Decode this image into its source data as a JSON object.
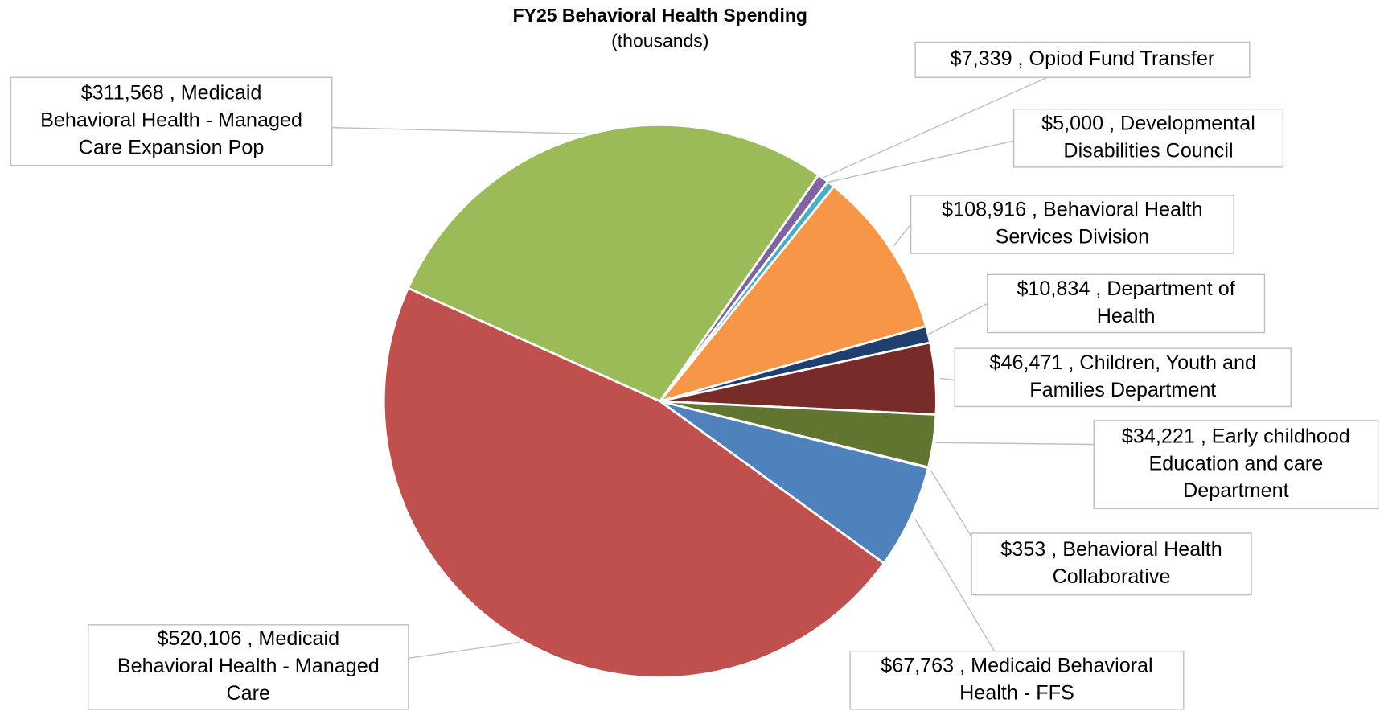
{
  "chart_data": {
    "type": "pie",
    "title": "FY25 Behavioral Health Spending",
    "subtitle": "(thousands)",
    "values": [
      7339,
      5000,
      108916,
      10834,
      46471,
      34221,
      353,
      67763,
      520106,
      311568
    ],
    "value_labels": [
      [
        "$7,339 , Opiod Fund Transfer"
      ],
      [
        "$5,000 , Developmental",
        "Disabilities Council"
      ],
      [
        "$108,916 , Behavioral Health",
        "Services Division"
      ],
      [
        "$10,834 , Department of",
        "Health"
      ],
      [
        "$46,471 , Children, Youth and",
        "Families Department"
      ],
      [
        "$34,221 , Early childhood",
        "Education and care",
        "Department"
      ],
      [
        "$353 , Behavioral Health",
        "Collaborative"
      ],
      [
        "$67,763 , Medicaid Behavioral",
        "Health - FFS"
      ],
      [
        "$520,106 , Medicaid",
        "Behavioral Health - Managed",
        "Care"
      ],
      [
        "$311,568 , Medicaid",
        "Behavioral Health - Managed",
        "Care Expansion Pop"
      ]
    ],
    "colors": [
      "#8064a2",
      "#4bacc6",
      "#f79646",
      "#1f3f6e",
      "#772c2a",
      "#5f7530",
      "#2c6f82",
      "#4f81bd",
      "#c0504d",
      "#9bbb59"
    ]
  }
}
